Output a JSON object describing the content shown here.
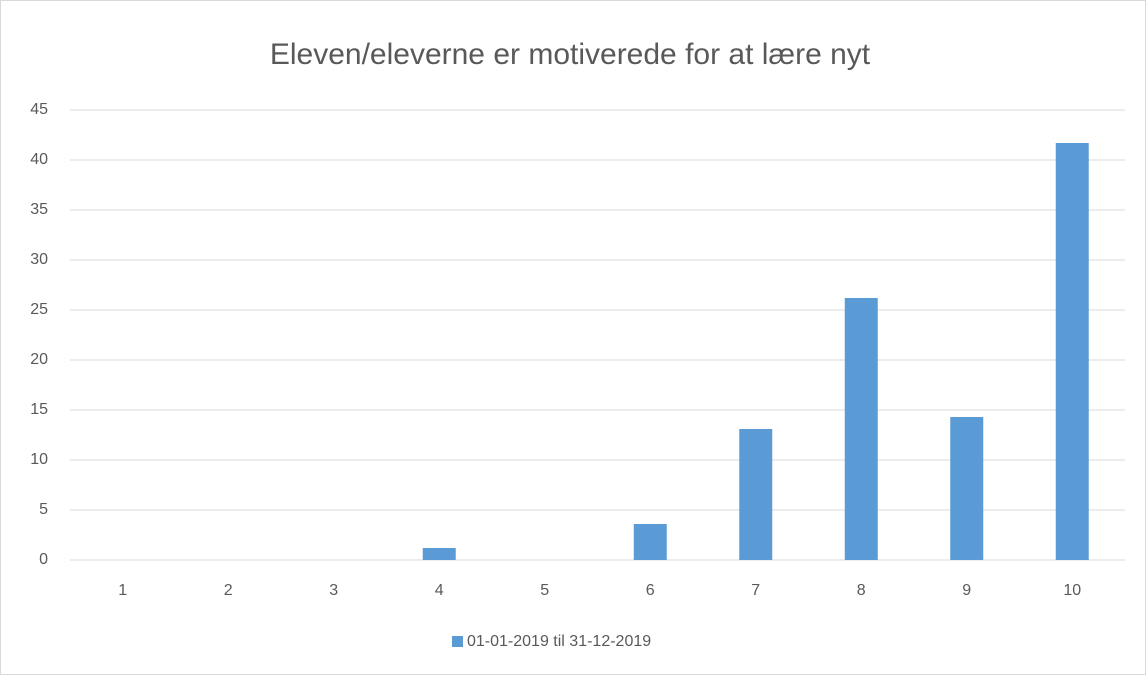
{
  "chart_data": {
    "type": "bar",
    "title": "Eleven/eleverne er motiverede for at lære nyt",
    "categories": [
      1,
      2,
      3,
      4,
      5,
      6,
      7,
      8,
      9,
      10
    ],
    "series": [
      {
        "name": "01-01-2019 til 31-12-2019",
        "color": "#5b9bd5",
        "values": [
          0,
          0,
          0,
          1.2,
          0,
          3.6,
          13.1,
          26.2,
          14.3,
          41.7
        ]
      }
    ],
    "ylim": [
      0,
      45
    ],
    "yticks": [
      0,
      5,
      10,
      15,
      20,
      25,
      30,
      35,
      40,
      45
    ],
    "grid": true,
    "legend": "bottom"
  }
}
